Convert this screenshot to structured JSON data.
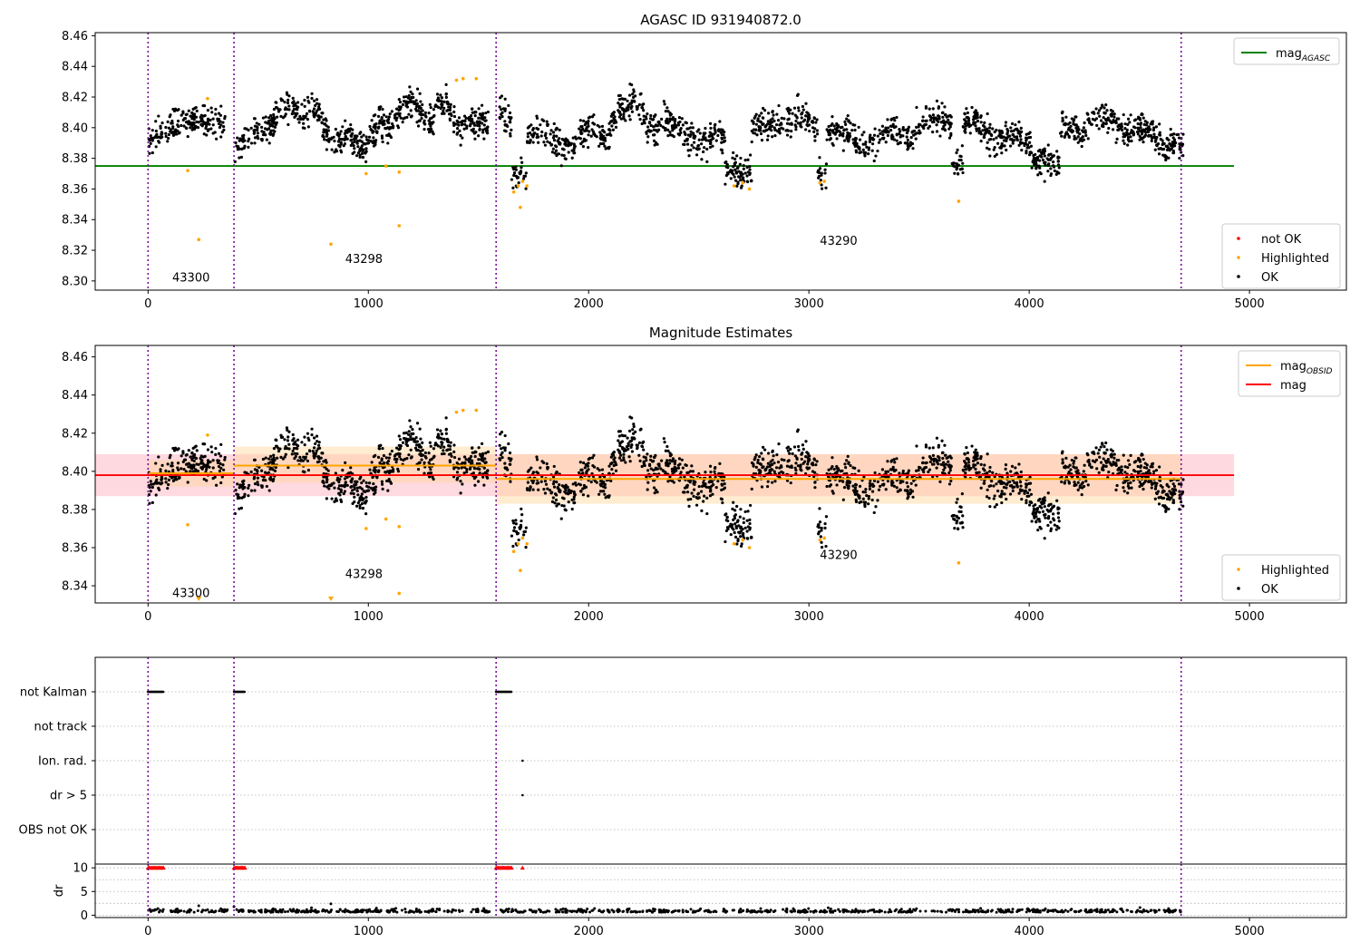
{
  "chart_data": [
    {
      "type": "scatter",
      "title": "AGASC ID 931940872.0",
      "xlim": [
        -240,
        5440
      ],
      "ylim": [
        8.294,
        8.462
      ],
      "xticks": [
        0,
        1000,
        2000,
        3000,
        4000,
        5000
      ],
      "yticks": [
        8.3,
        8.32,
        8.34,
        8.36,
        8.38,
        8.4,
        8.42,
        8.44,
        8.46
      ],
      "obsid_boundaries": [
        0,
        390,
        1580,
        4690
      ],
      "obsid_labels": [
        {
          "text": "43300",
          "x": 195,
          "y": 8.302
        },
        {
          "text": "43298",
          "x": 980,
          "y": 8.314
        },
        {
          "text": "43290",
          "x": 3135,
          "y": 8.326
        }
      ],
      "hlines": [
        {
          "name": "mag_AGASC",
          "y": 8.375,
          "x0": -240,
          "x1": 4930,
          "color": "#008000"
        }
      ],
      "legend_lines": [
        {
          "label": "mag",
          "subscript": "AGASC",
          "color": "#008000"
        }
      ],
      "legend_markers": [
        {
          "label": "not OK",
          "color": "#ff0000"
        },
        {
          "label": "Highlighted",
          "color": "#ffa500"
        },
        {
          "label": "OK",
          "color": "#000000"
        }
      ],
      "series": [
        {
          "name": "Highlighted",
          "color": "#ffa500",
          "points": [
            [
              180,
              8.372
            ],
            [
              230,
              8.327
            ],
            [
              270,
              8.419
            ],
            [
              830,
              8.324
            ],
            [
              990,
              8.37
            ],
            [
              1080,
              8.375
            ],
            [
              1140,
              8.371
            ],
            [
              1140,
              8.336
            ],
            [
              1400,
              8.431
            ],
            [
              1430,
              8.432
            ],
            [
              1490,
              8.432
            ],
            [
              1660,
              8.358
            ],
            [
              1680,
              8.362
            ],
            [
              1690,
              8.348
            ],
            [
              1700,
              8.365
            ],
            [
              1720,
              8.362
            ],
            [
              2660,
              8.362
            ],
            [
              2700,
              8.364
            ],
            [
              2730,
              8.36
            ],
            [
              3050,
              8.364
            ],
            [
              3070,
              8.365
            ],
            [
              3680,
              8.352
            ]
          ]
        }
      ]
    },
    {
      "type": "scatter",
      "title": "Magnitude Estimates",
      "xlim": [
        -240,
        5440
      ],
      "ylim": [
        8.331,
        8.466
      ],
      "xticks": [
        0,
        1000,
        2000,
        3000,
        4000,
        5000
      ],
      "yticks": [
        8.34,
        8.36,
        8.38,
        8.4,
        8.42,
        8.44,
        8.46
      ],
      "obsid_boundaries": [
        0,
        390,
        1580,
        4690
      ],
      "obsid_labels": [
        {
          "text": "43300",
          "x": 195,
          "y": 8.336
        },
        {
          "text": "43298",
          "x": 980,
          "y": 8.346
        },
        {
          "text": "43290",
          "x": 3135,
          "y": 8.356
        }
      ],
      "hlines": [
        {
          "name": "mag",
          "y": 8.398,
          "x0": -240,
          "x1": 4930,
          "color": "#ff0000"
        }
      ],
      "mag_band": {
        "y0": 8.387,
        "y1": 8.409,
        "x0": -240,
        "x1": 4930,
        "color": "#ffc0cb"
      },
      "obsid_mags": [
        {
          "x0": 0,
          "x1": 390,
          "y": 8.399,
          "band": [
            8.392,
            8.406
          ]
        },
        {
          "x0": 390,
          "x1": 1580,
          "y": 8.403,
          "band": [
            8.394,
            8.413
          ]
        },
        {
          "x0": 1580,
          "x1": 4690,
          "y": 8.396,
          "band": [
            8.383,
            8.409
          ]
        }
      ],
      "legend_lines": [
        {
          "label": "mag",
          "subscript": "OBSID",
          "color": "#ffa500"
        },
        {
          "label": "mag",
          "subscript": "",
          "color": "#ff0000"
        }
      ],
      "legend_markers": [
        {
          "label": "Highlighted",
          "color": "#ffa500"
        },
        {
          "label": "OK",
          "color": "#000000"
        }
      ],
      "series": [
        {
          "name": "Highlighted",
          "color": "#ffa500",
          "points": [
            [
              180,
              8.372
            ],
            [
              270,
              8.419
            ],
            [
              990,
              8.37
            ],
            [
              1080,
              8.375
            ],
            [
              1140,
              8.371
            ],
            [
              1140,
              8.336
            ],
            [
              1400,
              8.431
            ],
            [
              1430,
              8.432
            ],
            [
              1490,
              8.432
            ],
            [
              1660,
              8.358
            ],
            [
              1680,
              8.362
            ],
            [
              1690,
              8.348
            ],
            [
              1700,
              8.365
            ],
            [
              1720,
              8.362
            ],
            [
              2660,
              8.362
            ],
            [
              2700,
              8.364
            ],
            [
              2730,
              8.36
            ],
            [
              3050,
              8.364
            ],
            [
              3070,
              8.365
            ],
            [
              3680,
              8.352
            ]
          ]
        },
        {
          "name": "Highlighted (below axis)",
          "color": "#ffa500",
          "points": [
            [
              230,
              8.332
            ],
            [
              830,
              8.332
            ]
          ]
        }
      ]
    },
    {
      "type": "scatter",
      "title": "",
      "xlim": [
        -240,
        5440
      ],
      "ylabels": [
        "not Kalman",
        "not track",
        "Ion. rad.",
        "dr > 5",
        "OBS not OK"
      ],
      "obsid_boundaries": [
        0,
        390,
        1580,
        4690
      ],
      "flag_segments": [
        {
          "flag": "not Kalman",
          "x0": 0,
          "x1": 70
        },
        {
          "flag": "not Kalman",
          "x0": 390,
          "x1": 440
        },
        {
          "flag": "not Kalman",
          "x0": 1580,
          "x1": 1650
        }
      ],
      "flag_points": [
        {
          "flag": "Ion. rad.",
          "x": 1700
        },
        {
          "flag": "dr > 5",
          "x": 1700
        }
      ]
    },
    {
      "type": "scatter",
      "title": "",
      "ylabel": "dr",
      "xlim": [
        -240,
        5440
      ],
      "ylim": [
        -0.5,
        10.8
      ],
      "xticks": [
        0,
        1000,
        2000,
        3000,
        4000,
        5000
      ],
      "yticks": [
        0,
        5,
        10
      ],
      "obsid_boundaries": [
        0,
        390,
        1580,
        4690
      ],
      "dr_clipped": [
        {
          "x0": 0,
          "x1": 70,
          "y": 10
        },
        {
          "x0": 390,
          "x1": 440,
          "y": 10
        },
        {
          "x0": 1580,
          "x1": 1650,
          "y": 10
        },
        {
          "x": 1700,
          "y": 10
        }
      ],
      "dr_outliers": [
        [
          830,
          2.4
        ],
        [
          390,
          1.8
        ],
        [
          230,
          2.0
        ]
      ]
    }
  ]
}
